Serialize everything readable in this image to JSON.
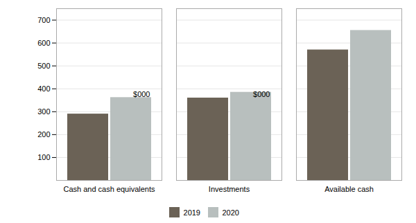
{
  "chart_data": {
    "type": "bar",
    "categories": [
      "Cash and cash equivalents",
      "Investments",
      "Available cash"
    ],
    "series": [
      {
        "name": "2019",
        "color": "#6b6256",
        "values": [
          290,
          360,
          570
        ]
      },
      {
        "name": "2020",
        "color": "#b8bfbe",
        "values": [
          362,
          385,
          655
        ]
      }
    ],
    "ylabel": "$000",
    "ylim": [
      0,
      750
    ],
    "yticks": [
      100,
      200,
      300,
      400,
      500,
      600,
      700
    ],
    "grid": true,
    "legend": "bottom"
  }
}
